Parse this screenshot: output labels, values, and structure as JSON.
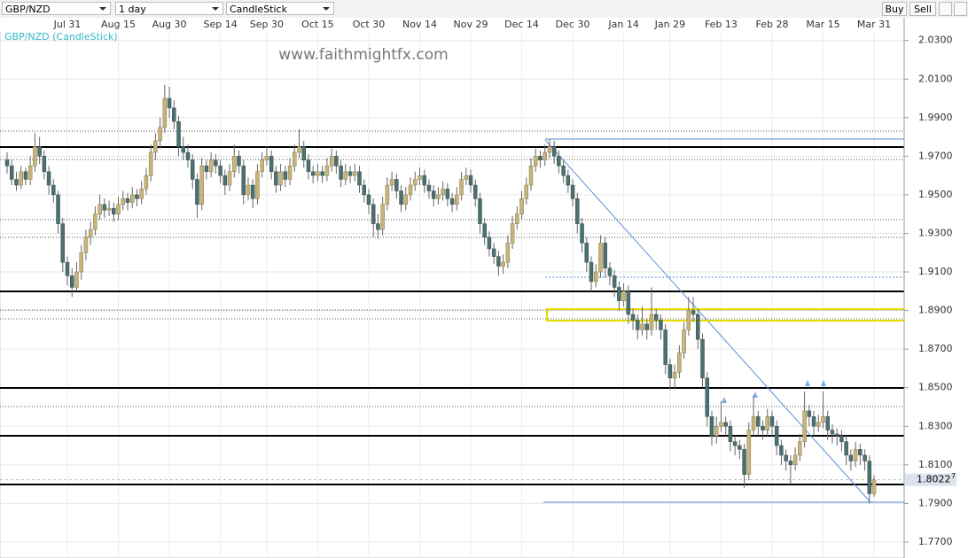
{
  "toolbar": {
    "symbol": "GBP/NZD",
    "interval": "1 day",
    "style": "CandleStick",
    "buy": "Buy",
    "sell": "Sell"
  },
  "watermark": "www.faithmightfx.com",
  "chart_data": {
    "type": "candlestick",
    "legend": "GBP/NZD (CandleStick)",
    "up_color": "#c6b47c",
    "down_color": "#4e6f70",
    "grid": true,
    "ylim": [
      1.7617,
      2.0418
    ],
    "yticks": [
      {
        "value": 1.77,
        "label": "1.7700"
      },
      {
        "value": 1.79,
        "label": "1.7900"
      },
      {
        "value": 1.81,
        "label": "1.8100"
      },
      {
        "value": 1.83,
        "label": "1.8300"
      },
      {
        "value": 1.85,
        "label": "1.8500"
      },
      {
        "value": 1.87,
        "label": "1.8700"
      },
      {
        "value": 1.89,
        "label": "1.8900"
      },
      {
        "value": 1.91,
        "label": "1.9100"
      },
      {
        "value": 1.93,
        "label": "1.9300"
      },
      {
        "value": 1.95,
        "label": "1.9500"
      },
      {
        "value": 1.97,
        "label": "1.9700"
      },
      {
        "value": 1.99,
        "label": "1.9900"
      },
      {
        "value": 2.01,
        "label": "2.0100"
      },
      {
        "value": 2.03,
        "label": "2.0300"
      }
    ],
    "last_price": {
      "value": 1.80227,
      "label": "1.8022",
      "suffix": "7"
    },
    "categories": [
      null,
      null,
      null,
      null,
      null,
      null,
      null,
      null,
      null,
      null,
      null,
      null,
      null,
      "Jul 31",
      null,
      null,
      null,
      null,
      null,
      null,
      null,
      null,
      null,
      null,
      "Aug 15",
      null,
      null,
      null,
      null,
      null,
      null,
      null,
      null,
      null,
      null,
      "Aug 30",
      null,
      null,
      null,
      null,
      null,
      null,
      null,
      null,
      null,
      null,
      "Sep 14",
      null,
      null,
      null,
      null,
      null,
      null,
      null,
      null,
      null,
      "Sep 30",
      null,
      null,
      null,
      null,
      null,
      null,
      null,
      null,
      null,
      null,
      "Oct 15",
      null,
      null,
      null,
      null,
      null,
      null,
      null,
      null,
      null,
      null,
      "Oct 30",
      null,
      null,
      null,
      null,
      null,
      null,
      null,
      null,
      null,
      null,
      "Nov 14",
      null,
      null,
      null,
      null,
      null,
      null,
      null,
      null,
      null,
      null,
      "Nov 29",
      null,
      null,
      null,
      null,
      null,
      null,
      null,
      null,
      null,
      null,
      "Dec 14",
      null,
      null,
      null,
      null,
      null,
      null,
      null,
      null,
      null,
      null,
      "Dec 30",
      null,
      null,
      null,
      null,
      null,
      null,
      null,
      null,
      null,
      null,
      "Jan 14",
      null,
      null,
      null,
      null,
      null,
      null,
      null,
      null,
      null,
      "Jan 29",
      null,
      null,
      null,
      null,
      null,
      null,
      null,
      null,
      null,
      null,
      "Feb 13",
      null,
      null,
      null,
      null,
      null,
      null,
      null,
      null,
      null,
      null,
      "Feb 28",
      null,
      null,
      null,
      null,
      null,
      null,
      null,
      null,
      null,
      null,
      "Mar 15",
      null,
      null,
      null,
      null,
      null,
      null,
      null,
      null,
      null,
      null,
      "Mar 31"
    ],
    "candles": [
      [
        1.968,
        1.972,
        1.961,
        1.965
      ],
      [
        1.965,
        1.968,
        1.955,
        1.958
      ],
      [
        1.958,
        1.962,
        1.952,
        1.955
      ],
      [
        1.955,
        1.965,
        1.953,
        1.962
      ],
      [
        1.962,
        1.964,
        1.955,
        1.958
      ],
      [
        1.958,
        1.97,
        1.955,
        1.965
      ],
      [
        1.965,
        1.982,
        1.962,
        1.975
      ],
      [
        1.975,
        1.98,
        1.966,
        1.97
      ],
      [
        1.97,
        1.973,
        1.958,
        1.962
      ],
      [
        1.962,
        1.965,
        1.95,
        1.955
      ],
      [
        1.955,
        1.958,
        1.946,
        1.95
      ],
      [
        1.95,
        1.952,
        1.93,
        1.935
      ],
      [
        1.935,
        1.938,
        1.91,
        1.915
      ],
      [
        1.915,
        1.918,
        1.903,
        1.908
      ],
      [
        1.908,
        1.912,
        1.897,
        1.902
      ],
      [
        1.902,
        1.915,
        1.9,
        1.91
      ],
      [
        1.91,
        1.924,
        1.906,
        1.92
      ],
      [
        1.92,
        1.932,
        1.916,
        1.928
      ],
      [
        1.928,
        1.936,
        1.924,
        1.932
      ],
      [
        1.932,
        1.944,
        1.929,
        1.94
      ],
      [
        1.94,
        1.95,
        1.937,
        1.945
      ],
      [
        1.945,
        1.948,
        1.938,
        1.942
      ],
      [
        1.942,
        1.947,
        1.939,
        1.943
      ],
      [
        1.943,
        1.946,
        1.936,
        1.94
      ],
      [
        1.94,
        1.949,
        1.937,
        1.945
      ],
      [
        1.945,
        1.952,
        1.942,
        1.948
      ],
      [
        1.948,
        1.951,
        1.942,
        1.946
      ],
      [
        1.946,
        1.954,
        1.943,
        1.95
      ],
      [
        1.95,
        1.953,
        1.944,
        1.948
      ],
      [
        1.948,
        1.957,
        1.945,
        1.953
      ],
      [
        1.953,
        1.964,
        1.95,
        1.96
      ],
      [
        1.96,
        1.976,
        1.957,
        1.972
      ],
      [
        1.972,
        1.982,
        1.968,
        1.978
      ],
      [
        1.978,
        1.99,
        1.974,
        1.985
      ],
      [
        1.985,
        2.007,
        1.982,
        2.0
      ],
      [
        2.0,
        2.006,
        1.99,
        1.995
      ],
      [
        1.995,
        1.999,
        1.984,
        1.988
      ],
      [
        1.988,
        1.991,
        1.97,
        1.975
      ],
      [
        1.975,
        1.98,
        1.968,
        1.972
      ],
      [
        1.972,
        1.976,
        1.964,
        1.968
      ],
      [
        1.968,
        1.971,
        1.953,
        1.958
      ],
      [
        1.958,
        1.961,
        1.938,
        1.945
      ],
      [
        1.945,
        1.969,
        1.942,
        1.965
      ],
      [
        1.965,
        1.968,
        1.958,
        1.962
      ],
      [
        1.962,
        1.972,
        1.959,
        1.968
      ],
      [
        1.968,
        1.971,
        1.961,
        1.965
      ],
      [
        1.965,
        1.968,
        1.956,
        1.96
      ],
      [
        1.96,
        1.963,
        1.95,
        1.955
      ],
      [
        1.955,
        1.966,
        1.952,
        1.962
      ],
      [
        1.962,
        1.976,
        1.959,
        1.97
      ],
      [
        1.97,
        1.973,
        1.961,
        1.965
      ],
      [
        1.965,
        1.968,
        1.945,
        1.95
      ],
      [
        1.95,
        1.959,
        1.947,
        1.955
      ],
      [
        1.955,
        1.958,
        1.943,
        1.948
      ],
      [
        1.948,
        1.966,
        1.945,
        1.962
      ],
      [
        1.962,
        1.972,
        1.959,
        1.968
      ],
      [
        1.968,
        1.975,
        1.965,
        1.97
      ],
      [
        1.97,
        1.973,
        1.958,
        1.962
      ],
      [
        1.962,
        1.965,
        1.951,
        1.955
      ],
      [
        1.955,
        1.966,
        1.952,
        1.962
      ],
      [
        1.962,
        1.965,
        1.954,
        1.958
      ],
      [
        1.958,
        1.969,
        1.955,
        1.965
      ],
      [
        1.965,
        1.976,
        1.962,
        1.972
      ],
      [
        1.972,
        1.984,
        1.969,
        1.975
      ],
      [
        1.975,
        1.978,
        1.964,
        1.968
      ],
      [
        1.968,
        1.971,
        1.958,
        1.962
      ],
      [
        1.962,
        1.965,
        1.956,
        1.96
      ],
      [
        1.96,
        1.966,
        1.957,
        1.962
      ],
      [
        1.962,
        1.965,
        1.956,
        1.96
      ],
      [
        1.96,
        1.969,
        1.957,
        1.965
      ],
      [
        1.965,
        1.974,
        1.962,
        1.97
      ],
      [
        1.97,
        1.973,
        1.961,
        1.965
      ],
      [
        1.965,
        1.968,
        1.954,
        1.958
      ],
      [
        1.958,
        1.966,
        1.955,
        1.962
      ],
      [
        1.962,
        1.965,
        1.956,
        1.96
      ],
      [
        1.96,
        1.966,
        1.957,
        1.962
      ],
      [
        1.962,
        1.965,
        1.951,
        1.955
      ],
      [
        1.955,
        1.958,
        1.946,
        1.95
      ],
      [
        1.95,
        1.953,
        1.94,
        1.945
      ],
      [
        1.945,
        1.948,
        1.928,
        1.935
      ],
      [
        1.935,
        1.94,
        1.927,
        1.932
      ],
      [
        1.932,
        1.949,
        1.929,
        1.945
      ],
      [
        1.945,
        1.959,
        1.942,
        1.955
      ],
      [
        1.955,
        1.962,
        1.952,
        1.958
      ],
      [
        1.958,
        1.961,
        1.948,
        1.952
      ],
      [
        1.952,
        1.955,
        1.941,
        1.945
      ],
      [
        1.945,
        1.954,
        1.942,
        1.95
      ],
      [
        1.95,
        1.959,
        1.947,
        1.955
      ],
      [
        1.955,
        1.962,
        1.952,
        1.958
      ],
      [
        1.958,
        1.964,
        1.955,
        1.96
      ],
      [
        1.96,
        1.963,
        1.951,
        1.955
      ],
      [
        1.955,
        1.958,
        1.948,
        1.952
      ],
      [
        1.952,
        1.955,
        1.944,
        1.948
      ],
      [
        1.948,
        1.954,
        1.945,
        1.95
      ],
      [
        1.95,
        1.957,
        1.947,
        1.953
      ],
      [
        1.953,
        1.956,
        1.944,
        1.948
      ],
      [
        1.948,
        1.951,
        1.941,
        1.945
      ],
      [
        1.945,
        1.954,
        1.942,
        1.95
      ],
      [
        1.95,
        1.962,
        1.947,
        1.958
      ],
      [
        1.958,
        1.964,
        1.955,
        1.96
      ],
      [
        1.96,
        1.963,
        1.951,
        1.955
      ],
      [
        1.955,
        1.958,
        1.944,
        1.948
      ],
      [
        1.948,
        1.951,
        1.93,
        1.935
      ],
      [
        1.935,
        1.938,
        1.924,
        1.928
      ],
      [
        1.928,
        1.931,
        1.918,
        1.922
      ],
      [
        1.922,
        1.925,
        1.914,
        1.918
      ],
      [
        1.918,
        1.921,
        1.908,
        1.913
      ],
      [
        1.913,
        1.919,
        1.909,
        1.915
      ],
      [
        1.915,
        1.929,
        1.912,
        1.925
      ],
      [
        1.925,
        1.939,
        1.922,
        1.935
      ],
      [
        1.935,
        1.944,
        1.932,
        1.94
      ],
      [
        1.94,
        1.952,
        1.937,
        1.948
      ],
      [
        1.948,
        1.959,
        1.945,
        1.955
      ],
      [
        1.955,
        1.969,
        1.952,
        1.965
      ],
      [
        1.965,
        1.974,
        1.962,
        1.97
      ],
      [
        1.97,
        1.973,
        1.964,
        1.968
      ],
      [
        1.968,
        1.976,
        1.965,
        1.972
      ],
      [
        1.972,
        1.979,
        1.969,
        1.975
      ],
      [
        1.975,
        1.978,
        1.966,
        1.97
      ],
      [
        1.97,
        1.973,
        1.961,
        1.965
      ],
      [
        1.965,
        1.968,
        1.956,
        1.96
      ],
      [
        1.96,
        1.963,
        1.951,
        1.955
      ],
      [
        1.955,
        1.958,
        1.944,
        1.948
      ],
      [
        1.948,
        1.951,
        1.93,
        1.935
      ],
      [
        1.935,
        1.938,
        1.92,
        1.925
      ],
      [
        1.925,
        1.928,
        1.91,
        1.915
      ],
      [
        1.915,
        1.918,
        1.9,
        1.905
      ],
      [
        1.905,
        1.914,
        1.902,
        1.91
      ],
      [
        1.91,
        1.929,
        1.907,
        1.925
      ],
      [
        1.925,
        1.928,
        1.907,
        1.912
      ],
      [
        1.912,
        1.915,
        1.903,
        1.908
      ],
      [
        1.908,
        1.911,
        1.897,
        1.902
      ],
      [
        1.902,
        1.905,
        1.89,
        1.895
      ],
      [
        1.895,
        1.904,
        1.892,
        1.9
      ],
      [
        1.9,
        1.903,
        1.883,
        1.888
      ],
      [
        1.888,
        1.891,
        1.88,
        1.885
      ],
      [
        1.885,
        1.888,
        1.875,
        1.88
      ],
      [
        1.88,
        1.892,
        1.877,
        1.883
      ],
      [
        1.883,
        1.886,
        1.875,
        1.88
      ],
      [
        1.88,
        1.902,
        1.877,
        1.888
      ],
      [
        1.888,
        1.891,
        1.88,
        1.885
      ],
      [
        1.885,
        1.888,
        1.875,
        1.88
      ],
      [
        1.88,
        1.883,
        1.857,
        1.862
      ],
      [
        1.862,
        1.865,
        1.849,
        1.855
      ],
      [
        1.855,
        1.862,
        1.849,
        1.858
      ],
      [
        1.858,
        1.872,
        1.855,
        1.868
      ],
      [
        1.868,
        1.884,
        1.865,
        1.88
      ],
      [
        1.88,
        1.897,
        1.877,
        1.89
      ],
      [
        1.89,
        1.897,
        1.884,
        1.888
      ],
      [
        1.888,
        1.891,
        1.87,
        1.875
      ],
      [
        1.875,
        1.878,
        1.85,
        1.855
      ],
      [
        1.855,
        1.858,
        1.83,
        1.835
      ],
      [
        1.835,
        1.838,
        1.82,
        1.825
      ],
      [
        1.825,
        1.835,
        1.821,
        1.83
      ],
      [
        1.83,
        1.843,
        1.827,
        1.832
      ],
      [
        1.832,
        1.835,
        1.825,
        1.83
      ],
      [
        1.83,
        1.833,
        1.817,
        1.822
      ],
      [
        1.822,
        1.825,
        1.815,
        1.82
      ],
      [
        1.82,
        1.823,
        1.813,
        1.818
      ],
      [
        1.818,
        1.821,
        1.798,
        1.805
      ],
      [
        1.805,
        1.832,
        1.802,
        1.828
      ],
      [
        1.828,
        1.846,
        1.825,
        1.835
      ],
      [
        1.835,
        1.838,
        1.825,
        1.83
      ],
      [
        1.83,
        1.833,
        1.823,
        1.828
      ],
      [
        1.828,
        1.839,
        1.825,
        1.835
      ],
      [
        1.835,
        1.838,
        1.825,
        1.83
      ],
      [
        1.83,
        1.833,
        1.815,
        1.82
      ],
      [
        1.82,
        1.823,
        1.81,
        1.815
      ],
      [
        1.815,
        1.818,
        1.807,
        1.812
      ],
      [
        1.812,
        1.815,
        1.8,
        1.81
      ],
      [
        1.81,
        1.819,
        1.807,
        1.815
      ],
      [
        1.815,
        1.826,
        1.812,
        1.822
      ],
      [
        1.822,
        1.848,
        1.819,
        1.838
      ],
      [
        1.838,
        1.841,
        1.83,
        1.835
      ],
      [
        1.835,
        1.838,
        1.825,
        1.83
      ],
      [
        1.83,
        1.836,
        1.827,
        1.832
      ],
      [
        1.832,
        1.848,
        1.829,
        1.835
      ],
      [
        1.835,
        1.838,
        1.823,
        1.828
      ],
      [
        1.828,
        1.831,
        1.821,
        1.826
      ],
      [
        1.826,
        1.829,
        1.82,
        1.825
      ],
      [
        1.825,
        1.828,
        1.817,
        1.822
      ],
      [
        1.822,
        1.825,
        1.81,
        1.815
      ],
      [
        1.815,
        1.818,
        1.807,
        1.812
      ],
      [
        1.812,
        1.822,
        1.809,
        1.818
      ],
      [
        1.818,
        1.821,
        1.81,
        1.815
      ],
      [
        1.815,
        1.818,
        1.807,
        1.812
      ],
      [
        1.812,
        1.815,
        1.79,
        1.795
      ],
      [
        1.795,
        1.8045,
        1.7935,
        1.8022
      ]
    ]
  }
}
